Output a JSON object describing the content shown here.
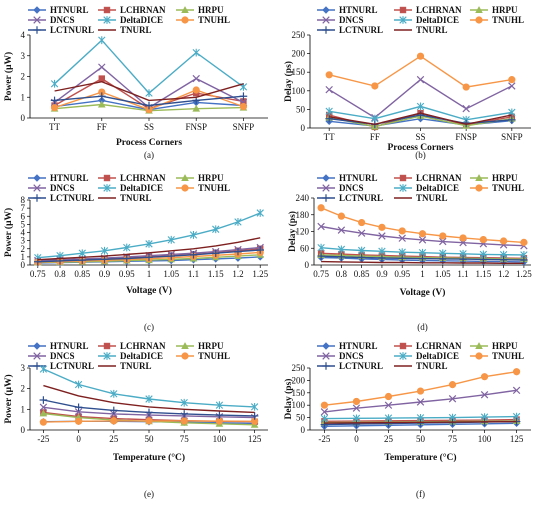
{
  "colors": {
    "HTNURL": "#4472C4",
    "LCHRNAN": "#C0504D",
    "HRPU": "#9BBB59",
    "DNCS": "#8064A2",
    "DeltaDICE": "#4BACC6",
    "TNUHL": "#F79646",
    "LCTNURL": "#2F4F8F",
    "TNURL": "#7F2020"
  },
  "chart_data": [
    {
      "type": "line",
      "panel": "(a)",
      "xlabel": "Process Corners",
      "ylabel": "Power (μW)",
      "categories": [
        "TT",
        "FF",
        "SS",
        "FNSP",
        "SNFP"
      ],
      "ylim": [
        0,
        4
      ],
      "yticks": [
        0,
        1,
        2,
        3,
        4
      ],
      "yticklabels": [
        "0",
        "1",
        "2",
        "3",
        "4"
      ],
      "series": [
        {
          "name": "HTNURL",
          "marker": "diamond",
          "values": [
            0.55,
            0.85,
            0.4,
            0.75,
            0.6
          ]
        },
        {
          "name": "LCHRNAN",
          "marker": "square",
          "values": [
            0.6,
            1.9,
            0.45,
            1.2,
            0.8
          ]
        },
        {
          "name": "HRPU",
          "marker": "triangle",
          "values": [
            0.45,
            0.65,
            0.35,
            0.45,
            0.5
          ]
        },
        {
          "name": "DNCS",
          "marker": "x",
          "values": [
            0.75,
            2.45,
            0.5,
            1.9,
            0.75
          ]
        },
        {
          "name": "DeltaDICE",
          "marker": "star",
          "values": [
            1.65,
            3.75,
            1.2,
            3.15,
            1.5
          ]
        },
        {
          "name": "TNUHL",
          "marker": "circle",
          "values": [
            0.5,
            1.25,
            0.4,
            1.35,
            0.55
          ]
        },
        {
          "name": "LCTNURL",
          "marker": "plus",
          "values": [
            0.85,
            1.05,
            0.6,
            0.85,
            1.05
          ]
        },
        {
          "name": "TNURL",
          "marker": "none",
          "values": [
            1.3,
            1.75,
            0.85,
            1.0,
            1.65
          ]
        }
      ]
    },
    {
      "type": "line",
      "panel": "(b)",
      "xlabel": "Process Corners",
      "ylabel": "Delay (ps)",
      "categories": [
        "TT",
        "FF",
        "SS",
        "FNSP",
        "SNFP"
      ],
      "ylim": [
        0,
        250
      ],
      "yticks": [
        0,
        50,
        100,
        150,
        200,
        250
      ],
      "yticklabels": [
        "0",
        "50",
        "100",
        "150",
        "200",
        "250"
      ],
      "series": [
        {
          "name": "HTNURL",
          "marker": "diamond",
          "values": [
            18,
            5,
            25,
            8,
            20
          ]
        },
        {
          "name": "LCHRNAN",
          "marker": "square",
          "values": [
            35,
            3,
            40,
            8,
            30
          ]
        },
        {
          "name": "HRPU",
          "marker": "triangle",
          "values": [
            28,
            4,
            32,
            6,
            25
          ]
        },
        {
          "name": "DNCS",
          "marker": "x",
          "values": [
            103,
            28,
            130,
            52,
            113
          ]
        },
        {
          "name": "DeltaDICE",
          "marker": "star",
          "values": [
            45,
            25,
            58,
            22,
            42
          ]
        },
        {
          "name": "TNUHL",
          "marker": "circle",
          "values": [
            143,
            113,
            193,
            110,
            130
          ]
        },
        {
          "name": "LCTNURL",
          "marker": "plus",
          "values": [
            25,
            10,
            35,
            12,
            22
          ]
        },
        {
          "name": "TNURL",
          "marker": "none",
          "values": [
            30,
            10,
            40,
            10,
            35
          ]
        }
      ]
    },
    {
      "type": "line",
      "panel": "(c)",
      "xlabel": "Voltage (V)",
      "ylabel": "Power (μW)",
      "categories": [
        "0.75",
        "0.8",
        "0.85",
        "0.9",
        "0.95",
        "1",
        "1.05",
        "1.1",
        "1.15",
        "1.2",
        "1.25"
      ],
      "ylim": [
        0,
        8
      ],
      "yticks": [
        0,
        1,
        2,
        3,
        4,
        5,
        6,
        7,
        8
      ],
      "yticklabels": [
        "0",
        "1",
        "2",
        "3",
        "4",
        "5",
        "6",
        "7",
        "8"
      ],
      "series": [
        {
          "name": "HTNURL",
          "marker": "diamond",
          "values": [
            0.25,
            0.3,
            0.35,
            0.4,
            0.45,
            0.5,
            0.55,
            0.65,
            0.75,
            0.85,
            1.0
          ]
        },
        {
          "name": "LCHRNAN",
          "marker": "square",
          "values": [
            0.45,
            0.55,
            0.65,
            0.75,
            0.85,
            1.0,
            1.15,
            1.3,
            1.5,
            1.75,
            2.0
          ]
        },
        {
          "name": "HRPU",
          "marker": "triangle",
          "values": [
            0.3,
            0.35,
            0.4,
            0.45,
            0.55,
            0.6,
            0.7,
            0.8,
            0.95,
            1.1,
            1.25
          ]
        },
        {
          "name": "DNCS",
          "marker": "x",
          "values": [
            0.55,
            0.65,
            0.75,
            0.85,
            1.0,
            1.15,
            1.3,
            1.45,
            1.65,
            1.9,
            2.15
          ]
        },
        {
          "name": "DeltaDICE",
          "marker": "star",
          "values": [
            0.9,
            1.15,
            1.45,
            1.75,
            2.15,
            2.6,
            3.1,
            3.7,
            4.4,
            5.3,
            6.4
          ]
        },
        {
          "name": "TNUHL",
          "marker": "circle",
          "values": [
            0.35,
            0.42,
            0.5,
            0.58,
            0.68,
            0.78,
            0.9,
            1.05,
            1.2,
            1.35,
            1.55
          ]
        },
        {
          "name": "LCTNURL",
          "marker": "plus",
          "values": [
            0.4,
            0.5,
            0.6,
            0.7,
            0.8,
            0.95,
            1.1,
            1.25,
            1.45,
            1.65,
            1.85
          ]
        },
        {
          "name": "TNURL",
          "marker": "none",
          "values": [
            0.65,
            0.8,
            0.95,
            1.1,
            1.3,
            1.5,
            1.75,
            2.0,
            2.35,
            2.8,
            3.35
          ]
        }
      ]
    },
    {
      "type": "line",
      "panel": "(d)",
      "xlabel": "Voltage (V)",
      "ylabel": "Delay (ps)",
      "categories": [
        "0.75",
        "0.8",
        "0.85",
        "0.9",
        "0.95",
        "1",
        "1.05",
        "1.1",
        "1.15",
        "1.2",
        "1.25"
      ],
      "ylim": [
        0,
        240
      ],
      "yticks": [
        0,
        60,
        120,
        180,
        240
      ],
      "yticklabels": [
        "0",
        "60",
        "120",
        "180",
        "240"
      ],
      "series": [
        {
          "name": "HTNURL",
          "marker": "diamond",
          "values": [
            27,
            25,
            22,
            20,
            18,
            16,
            15,
            14,
            13,
            12,
            11
          ]
        },
        {
          "name": "LCHRNAN",
          "marker": "square",
          "values": [
            42,
            39,
            36,
            34,
            32,
            30,
            28,
            27,
            26,
            25,
            24
          ]
        },
        {
          "name": "HRPU",
          "marker": "triangle",
          "values": [
            36,
            34,
            32,
            30,
            28,
            26,
            25,
            24,
            23,
            22,
            21
          ]
        },
        {
          "name": "DNCS",
          "marker": "x",
          "values": [
            138,
            125,
            114,
            104,
            96,
            90,
            84,
            80,
            76,
            72,
            69
          ]
        },
        {
          "name": "DeltaDICE",
          "marker": "star",
          "values": [
            62,
            56,
            52,
            49,
            46,
            44,
            42,
            40,
            38,
            37,
            36
          ]
        },
        {
          "name": "TNUHL",
          "marker": "circle",
          "values": [
            205,
            175,
            152,
            135,
            122,
            112,
            104,
            97,
            91,
            86,
            81
          ]
        },
        {
          "name": "LCTNURL",
          "marker": "plus",
          "values": [
            32,
            29,
            27,
            25,
            24,
            23,
            22,
            21,
            20,
            19,
            18
          ]
        },
        {
          "name": "TNURL",
          "marker": "none",
          "values": [
            12,
            11,
            10,
            9,
            9,
            8,
            8,
            7,
            7,
            6,
            6
          ]
        }
      ]
    },
    {
      "type": "line",
      "panel": "(e)",
      "xlabel": "Temperature (°C)",
      "ylabel": "Power (μW)",
      "categories": [
        "-25",
        "0",
        "25",
        "50",
        "75",
        "100",
        "125"
      ],
      "ylim": [
        0,
        3
      ],
      "yticks": [
        0,
        1,
        2,
        3
      ],
      "yticklabels": [
        "0",
        "1",
        "2",
        "3"
      ],
      "series": [
        {
          "name": "HTNURL",
          "marker": "diamond",
          "values": [
            0.4,
            0.42,
            0.42,
            0.4,
            0.38,
            0.35,
            0.32
          ]
        },
        {
          "name": "LCHRNAN",
          "marker": "square",
          "values": [
            0.85,
            0.65,
            0.55,
            0.5,
            0.45,
            0.42,
            0.4
          ]
        },
        {
          "name": "HRPU",
          "marker": "triangle",
          "values": [
            0.8,
            0.6,
            0.48,
            0.42,
            0.35,
            0.3,
            0.25
          ]
        },
        {
          "name": "DNCS",
          "marker": "x",
          "values": [
            1.1,
            0.88,
            0.78,
            0.72,
            0.68,
            0.64,
            0.6
          ]
        },
        {
          "name": "DeltaDICE",
          "marker": "star",
          "values": [
            2.95,
            2.2,
            1.75,
            1.5,
            1.32,
            1.2,
            1.12
          ]
        },
        {
          "name": "TNUHL",
          "marker": "circle",
          "values": [
            0.38,
            0.42,
            0.44,
            0.44,
            0.44,
            0.43,
            0.42
          ]
        },
        {
          "name": "LCTNURL",
          "marker": "plus",
          "values": [
            1.45,
            1.1,
            0.95,
            0.85,
            0.78,
            0.72,
            0.68
          ]
        },
        {
          "name": "TNURL",
          "marker": "none",
          "values": [
            2.15,
            1.65,
            1.32,
            1.12,
            1.0,
            0.92,
            0.85
          ]
        }
      ]
    },
    {
      "type": "line",
      "panel": "(f)",
      "xlabel": "Temperature (°C)",
      "ylabel": "Delay (ps)",
      "categories": [
        "-25",
        "0",
        "25",
        "50",
        "75",
        "100",
        "125"
      ],
      "ylim": [
        0,
        250
      ],
      "yticks": [
        0,
        50,
        100,
        150,
        200,
        250
      ],
      "yticklabels": [
        "0",
        "50",
        "100",
        "150",
        "200",
        "250"
      ],
      "series": [
        {
          "name": "HTNURL",
          "marker": "diamond",
          "values": [
            15,
            17,
            19,
            21,
            23,
            25,
            27
          ]
        },
        {
          "name": "LCHRNAN",
          "marker": "square",
          "values": [
            35,
            36,
            37,
            38,
            39,
            40,
            42
          ]
        },
        {
          "name": "HRPU",
          "marker": "triangle",
          "values": [
            30,
            31,
            32,
            33,
            34,
            35,
            36
          ]
        },
        {
          "name": "DNCS",
          "marker": "x",
          "values": [
            73,
            88,
            100,
            113,
            126,
            142,
            160
          ]
        },
        {
          "name": "DeltaDICE",
          "marker": "star",
          "values": [
            46,
            47,
            48,
            49,
            50,
            52,
            54
          ]
        },
        {
          "name": "TNUHL",
          "marker": "circle",
          "values": [
            100,
            115,
            135,
            157,
            183,
            215,
            235
          ]
        },
        {
          "name": "LCTNURL",
          "marker": "plus",
          "values": [
            22,
            24,
            26,
            28,
            30,
            32,
            34
          ]
        },
        {
          "name": "TNURL",
          "marker": "none",
          "values": [
            28,
            29,
            30,
            31,
            32,
            33,
            34
          ]
        }
      ]
    }
  ]
}
